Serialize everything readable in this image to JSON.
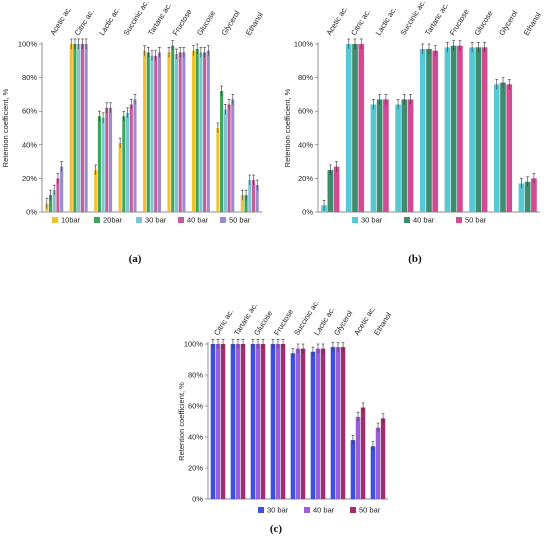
{
  "chart_data": [
    {
      "type": "bar",
      "panel_label": "(a)",
      "ylabel": "Retention coefficient, %",
      "ylim": [
        0,
        100
      ],
      "yticks": [
        "0%",
        "20%",
        "40%",
        "60%",
        "80%",
        "100%"
      ],
      "grid": false,
      "legend_position": "bottom",
      "categories": [
        "Acetic ac.",
        "Citric ac.",
        "Lactic ac.",
        "Succinic ac.",
        "Tartaric ac.",
        "Fructose",
        "Glucose",
        "Glycerol",
        "Ethanol"
      ],
      "series": [
        {
          "name": "10bar",
          "color": "#f2c230",
          "values": [
            5,
            100,
            25,
            41,
            96,
            95,
            96,
            50,
            10
          ]
        },
        {
          "name": "20bar",
          "color": "#3aa55c",
          "values": [
            10,
            100,
            57,
            57,
            95,
            99,
            97,
            72,
            10
          ]
        },
        {
          "name": "30 bar",
          "color": "#7dc4d4",
          "values": [
            13,
            100,
            56,
            59,
            93,
            94,
            95,
            61,
            19
          ]
        },
        {
          "name": "40 bar",
          "color": "#c65c9a",
          "values": [
            20,
            100,
            62,
            64,
            93,
            95,
            95,
            64,
            19
          ]
        },
        {
          "name": "50 bar",
          "color": "#9a8ccc",
          "values": [
            27,
            100,
            62,
            67,
            95,
            95,
            96,
            67,
            16
          ]
        }
      ]
    },
    {
      "type": "bar",
      "panel_label": "(b)",
      "ylabel": "Retention coefficient, %",
      "ylim": [
        0,
        100
      ],
      "yticks": [
        "0%",
        "20%",
        "40%",
        "60%",
        "80%",
        "100%"
      ],
      "grid": false,
      "legend_position": "bottom",
      "categories": [
        "Acetic ac.",
        "Citric ac.",
        "Lactic ac.",
        "Succinic ac.",
        "Tartaric ac.",
        "Fructose",
        "Glucose",
        "Glycerol",
        "Ethanol"
      ],
      "series": [
        {
          "name": "30 bar",
          "color": "#56c9d6",
          "values": [
            4,
            100,
            64,
            64,
            97,
            98,
            98,
            76,
            17
          ]
        },
        {
          "name": "40 bar",
          "color": "#3e8c6d",
          "values": [
            25,
            100,
            67,
            67,
            97,
            99,
            98,
            77,
            18
          ]
        },
        {
          "name": "50 bar",
          "color": "#d14a92",
          "values": [
            27,
            100,
            67,
            67,
            96,
            99,
            98,
            76,
            20
          ]
        }
      ]
    },
    {
      "type": "bar",
      "panel_label": "(c)",
      "ylabel": "Retention coefficient, %",
      "ylim": [
        0,
        100
      ],
      "yticks": [
        "0%",
        "20%",
        "40%",
        "60%",
        "80%",
        "100%"
      ],
      "grid": false,
      "legend_position": "bottom",
      "categories": [
        "Citric ac.",
        "Tartaric ac.",
        "Glucose",
        "Fructose",
        "Succinic ac.",
        "Lactic ac.",
        "Glycerol",
        "Acetic ac.",
        "Ethanol"
      ],
      "series": [
        {
          "name": "30 bar",
          "color": "#3b4fe0",
          "values": [
            100,
            100,
            100,
            100,
            94,
            95,
            98,
            38,
            34
          ]
        },
        {
          "name": "40 bar",
          "color": "#9a5fd6",
          "values": [
            100,
            100,
            100,
            100,
            97,
            97,
            98,
            53,
            46
          ]
        },
        {
          "name": "50 bar",
          "color": "#9c2f6e",
          "values": [
            100,
            100,
            100,
            100,
            97,
            97,
            98,
            59,
            52
          ]
        }
      ]
    }
  ]
}
